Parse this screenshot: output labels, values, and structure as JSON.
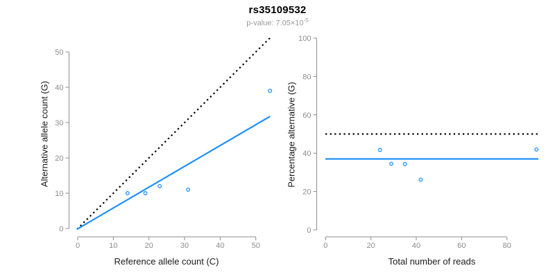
{
  "header": {
    "title": "rs35109532",
    "pvalue_prefix": "p-value: 7.05×10",
    "pvalue_exponent": "-5"
  },
  "colors": {
    "accent_blue": "#1E90FF",
    "dotted_black": "#000000",
    "axis_line": "#8C8C8C",
    "tick_label": "#8C8C8C",
    "axis_title": "#1a1a1a",
    "subtitle_gray": "#999999"
  },
  "chart_data": [
    {
      "type": "scatter",
      "name": "allele-count-scatter",
      "xlabel": "Reference allele count (C)",
      "ylabel": "Alternative allele count (G)",
      "xlim": [
        0,
        55
      ],
      "ylim": [
        0,
        54
      ],
      "xticks": [
        0,
        10,
        20,
        30,
        40,
        50
      ],
      "yticks": [
        0,
        10,
        20,
        30,
        40,
        50
      ],
      "grid": false,
      "points": [
        [
          14,
          10
        ],
        [
          19,
          10
        ],
        [
          23,
          12
        ],
        [
          31,
          11
        ],
        [
          54,
          39
        ]
      ],
      "lines": [
        {
          "name": "identity-line",
          "style": "dotted",
          "color": "black",
          "slope": 1,
          "intercept": 0
        },
        {
          "name": "fit-line",
          "style": "solid",
          "color": "accent",
          "slope": 0.588,
          "intercept": 0,
          "xmax": 54
        }
      ]
    },
    {
      "type": "scatter",
      "name": "percentage-alternative-scatter",
      "xlabel": "Total number of reads",
      "ylabel": "Percentage alternative (G)",
      "xlim": [
        0,
        94
      ],
      "ylim": [
        0,
        100
      ],
      "xticks": [
        0,
        20,
        40,
        60,
        80
      ],
      "yticks": [
        0,
        20,
        40,
        60,
        80,
        100
      ],
      "grid": false,
      "points": [
        [
          24,
          41.7
        ],
        [
          29,
          34.5
        ],
        [
          35,
          34.3
        ],
        [
          42,
          26.2
        ],
        [
          93,
          41.9
        ]
      ],
      "lines": [
        {
          "name": "null-expectation-line",
          "style": "dotted",
          "color": "black",
          "hline": 50
        },
        {
          "name": "fit-line",
          "style": "solid",
          "color": "accent",
          "hline": 37
        }
      ]
    }
  ]
}
